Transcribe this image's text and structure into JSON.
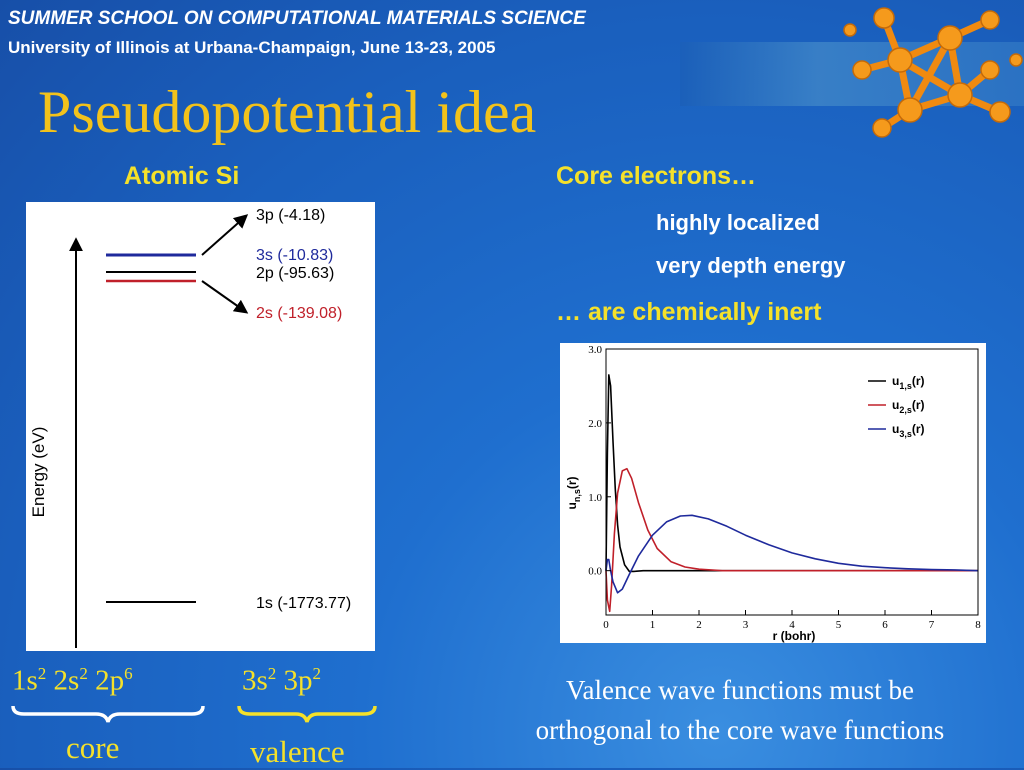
{
  "header": {
    "line1": "SUMMER SCHOOL ON COMPUTATIONAL MATERIALS SCIENCE",
    "line2": "University of Illinois at Urbana-Champaign, June 13-23, 2005"
  },
  "title": "Pseudopotential idea",
  "left": {
    "heading": "Atomic Si",
    "diagram": {
      "axis_label": "Energy (eV)",
      "levels": [
        {
          "label": "3p (-4.18)",
          "color": "#000000"
        },
        {
          "label": "3s (-10.83)",
          "color": "#1f2a9c"
        },
        {
          "label": "2p (-95.63)",
          "color": "#000000"
        },
        {
          "label": "2s (-139.08)",
          "color": "#c0202a"
        },
        {
          "label": "1s (-1773.77)",
          "color": "#000000"
        }
      ]
    },
    "config_core": {
      "a": "1s",
      "a_sup": "2",
      "b": "2s",
      "b_sup": "2",
      "c": "2p",
      "c_sup": "6"
    },
    "config_valence": {
      "a": "3s",
      "a_sup": "2",
      "b": "3p",
      "b_sup": "2"
    },
    "core_label": "core",
    "valence_label": "valence"
  },
  "right": {
    "heading": "Core electrons…",
    "items": [
      "highly localized",
      "very depth energy"
    ],
    "conclusion": "… are chemically inert",
    "note_line1": "Valence wave functions must be",
    "note_line2": "orthogonal to the core wave functions"
  },
  "chart_data": {
    "type": "line",
    "title": "",
    "xlabel": "r (bohr)",
    "ylabel": "u",
    "ylabel_sub": "n,s",
    "ylabel_suffix": "(r)",
    "xlim": [
      0,
      8
    ],
    "ylim": [
      -0.6,
      3.0
    ],
    "xticks": [
      "0",
      "1",
      "2",
      "3",
      "4",
      "5",
      "6",
      "7",
      "8"
    ],
    "yticks": [
      "0.0",
      "1.0",
      "2.0",
      "3.0"
    ],
    "legend_position": "top-right",
    "series": [
      {
        "name": "u1,s(r)",
        "label_main": "u",
        "label_sub": "1,s",
        "label_suffix": "(r)",
        "color": "#000000",
        "x": [
          0,
          0.03,
          0.06,
          0.1,
          0.15,
          0.2,
          0.25,
          0.3,
          0.4,
          0.5,
          0.6,
          0.8,
          1.0,
          8.0
        ],
        "y": [
          0,
          1.6,
          2.65,
          2.5,
          1.75,
          1.1,
          0.62,
          0.32,
          0.08,
          -0.01,
          -0.01,
          0.0,
          0.0,
          0.0
        ]
      },
      {
        "name": "u2,s(r)",
        "label_main": "u",
        "label_sub": "2,s",
        "label_suffix": "(r)",
        "color": "#c0202a",
        "x": [
          0,
          0.03,
          0.08,
          0.12,
          0.18,
          0.25,
          0.35,
          0.45,
          0.55,
          0.7,
          0.9,
          1.1,
          1.4,
          1.7,
          2.0,
          2.5,
          3.0,
          8.0
        ],
        "y": [
          0,
          -0.4,
          -0.55,
          -0.2,
          0.5,
          1.05,
          1.35,
          1.38,
          1.25,
          0.92,
          0.55,
          0.3,
          0.12,
          0.05,
          0.02,
          0.0,
          0.0,
          0.0
        ]
      },
      {
        "name": "u3,s(r)",
        "label_main": "u",
        "label_sub": "3,s",
        "label_suffix": "(r)",
        "color": "#1f2a9c",
        "x": [
          0,
          0.03,
          0.06,
          0.1,
          0.15,
          0.25,
          0.35,
          0.5,
          0.7,
          1.0,
          1.3,
          1.6,
          1.85,
          2.2,
          2.6,
          3.0,
          3.5,
          4.0,
          4.5,
          5.0,
          5.5,
          6.0,
          6.5,
          7.0,
          7.5,
          8.0
        ],
        "y": [
          0,
          0.15,
          0.15,
          0.0,
          -0.15,
          -0.3,
          -0.25,
          -0.05,
          0.2,
          0.48,
          0.66,
          0.74,
          0.75,
          0.7,
          0.6,
          0.48,
          0.35,
          0.24,
          0.16,
          0.1,
          0.06,
          0.04,
          0.025,
          0.015,
          0.01,
          0.0
        ]
      }
    ]
  }
}
